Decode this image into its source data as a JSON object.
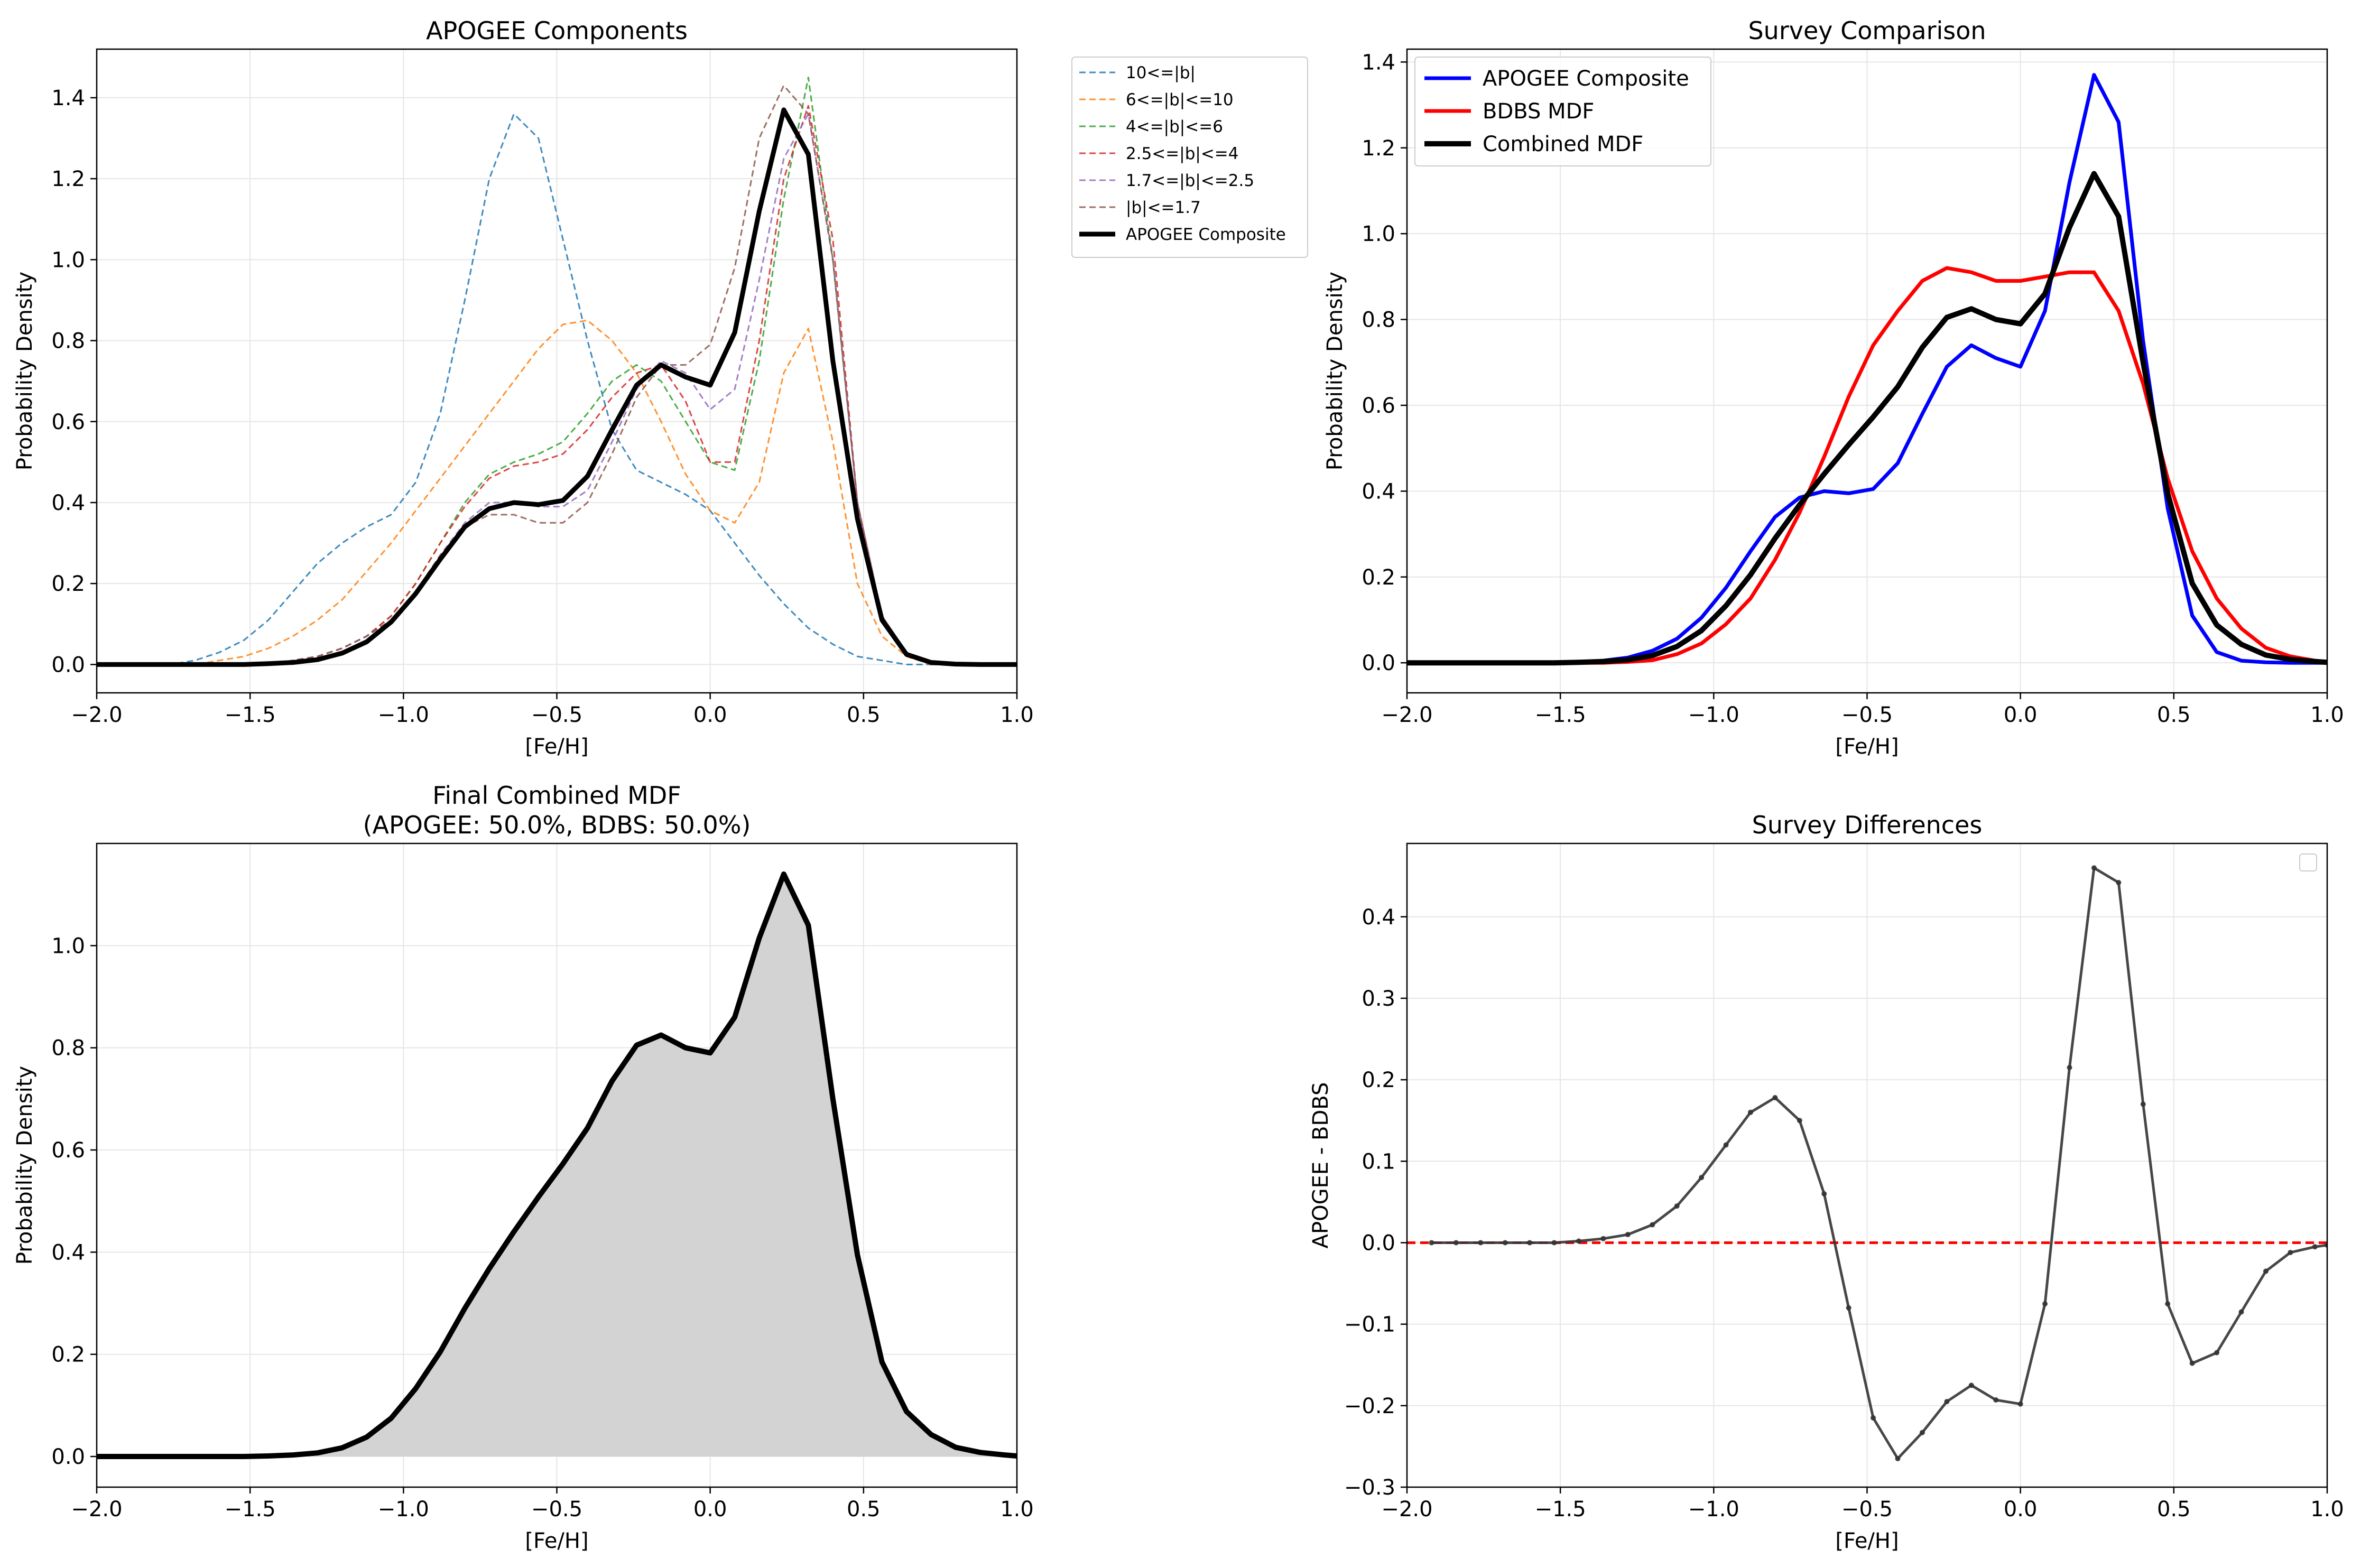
{
  "figure": {
    "background": "#ffffff"
  },
  "chart_data": [
    {
      "type": "line",
      "title": "APOGEE Components",
      "xlabel": "[Fe/H]",
      "ylabel": "Probability Density",
      "xlim": [
        -2.0,
        1.0
      ],
      "ylim": [
        -0.07,
        1.52
      ],
      "xticks": [
        -2.0,
        -1.5,
        -1.0,
        -0.5,
        0.0,
        0.5,
        1.0
      ],
      "xtick_labels": [
        "−2.0",
        "−1.5",
        "−1.0",
        "−0.5",
        "0.0",
        "0.5",
        "1.0"
      ],
      "yticks": [
        0.0,
        0.2,
        0.4,
        0.6,
        0.8,
        1.0,
        1.2,
        1.4
      ],
      "ytick_labels": [
        "0.0",
        "0.2",
        "0.4",
        "0.6",
        "0.8",
        "1.0",
        "1.2",
        "1.4"
      ],
      "grid": true,
      "legend": "outside-right",
      "x": [
        -2.0,
        -1.92,
        -1.84,
        -1.76,
        -1.68,
        -1.6,
        -1.52,
        -1.44,
        -1.36,
        -1.28,
        -1.2,
        -1.12,
        -1.04,
        -0.96,
        -0.88,
        -0.8,
        -0.72,
        -0.64,
        -0.56,
        -0.48,
        -0.4,
        -0.32,
        -0.24,
        -0.16,
        -0.08,
        0.0,
        0.08,
        0.16,
        0.24,
        0.32,
        0.4,
        0.48,
        0.56,
        0.64,
        0.72,
        0.8,
        0.88,
        0.96,
        1.0
      ],
      "series": [
        {
          "name": "10<=|b|",
          "color": "#1f77b4",
          "style": "dashed",
          "width": 3,
          "opacity": 0.85,
          "values": [
            0,
            0,
            0,
            0,
            0.01,
            0.03,
            0.06,
            0.11,
            0.18,
            0.25,
            0.3,
            0.34,
            0.37,
            0.45,
            0.62,
            0.9,
            1.2,
            1.36,
            1.3,
            1.05,
            0.8,
            0.58,
            0.48,
            0.45,
            0.42,
            0.38,
            0.3,
            0.22,
            0.15,
            0.09,
            0.05,
            0.02,
            0.01,
            0,
            0,
            0,
            0,
            0,
            0
          ]
        },
        {
          "name": "6<=|b|<=10",
          "color": "#ff7f0e",
          "style": "dashed",
          "width": 3,
          "opacity": 0.85,
          "values": [
            0,
            0,
            0,
            0,
            0,
            0.01,
            0.02,
            0.04,
            0.07,
            0.11,
            0.16,
            0.23,
            0.3,
            0.38,
            0.46,
            0.54,
            0.62,
            0.7,
            0.78,
            0.84,
            0.85,
            0.8,
            0.72,
            0.6,
            0.47,
            0.38,
            0.35,
            0.45,
            0.72,
            0.83,
            0.55,
            0.2,
            0.07,
            0.02,
            0,
            0,
            0,
            0,
            0
          ]
        },
        {
          "name": "4<=|b|<=6",
          "color": "#2ca02c",
          "style": "dashed",
          "width": 3,
          "opacity": 0.85,
          "values": [
            0,
            0,
            0,
            0,
            0,
            0,
            0,
            0,
            0.01,
            0.02,
            0.04,
            0.07,
            0.12,
            0.2,
            0.3,
            0.4,
            0.47,
            0.5,
            0.52,
            0.55,
            0.62,
            0.7,
            0.74,
            0.7,
            0.6,
            0.5,
            0.48,
            0.75,
            1.15,
            1.45,
            1.0,
            0.4,
            0.12,
            0.03,
            0,
            0,
            0,
            0,
            0
          ]
        },
        {
          "name": "2.5<=|b|<=4",
          "color": "#d62728",
          "style": "dashed",
          "width": 3,
          "opacity": 0.85,
          "values": [
            0,
            0,
            0,
            0,
            0,
            0,
            0,
            0,
            0.01,
            0.02,
            0.04,
            0.07,
            0.12,
            0.2,
            0.3,
            0.39,
            0.46,
            0.49,
            0.5,
            0.52,
            0.58,
            0.66,
            0.72,
            0.74,
            0.65,
            0.5,
            0.5,
            0.8,
            1.2,
            1.38,
            1.05,
            0.4,
            0.12,
            0.03,
            0,
            0,
            0,
            0,
            0
          ]
        },
        {
          "name": "1.7<=|b|<=2.5",
          "color": "#9467bd",
          "style": "dashed",
          "width": 3,
          "opacity": 0.85,
          "values": [
            0,
            0,
            0,
            0,
            0,
            0,
            0,
            0,
            0.01,
            0.02,
            0.04,
            0.07,
            0.11,
            0.18,
            0.27,
            0.35,
            0.4,
            0.4,
            0.39,
            0.39,
            0.43,
            0.55,
            0.68,
            0.75,
            0.72,
            0.63,
            0.68,
            0.95,
            1.25,
            1.36,
            1.0,
            0.4,
            0.12,
            0.03,
            0,
            0,
            0,
            0,
            0
          ]
        },
        {
          "name": "|b|<=1.7",
          "color": "#8c564b",
          "style": "dashed",
          "width": 3,
          "opacity": 0.85,
          "values": [
            0,
            0,
            0,
            0,
            0,
            0,
            0,
            0,
            0.01,
            0.02,
            0.04,
            0.07,
            0.11,
            0.18,
            0.27,
            0.34,
            0.37,
            0.37,
            0.35,
            0.35,
            0.4,
            0.52,
            0.66,
            0.74,
            0.74,
            0.79,
            0.98,
            1.3,
            1.43,
            1.36,
            1.0,
            0.4,
            0.12,
            0.03,
            0,
            0,
            0,
            0,
            0
          ]
        },
        {
          "name": "APOGEE Composite",
          "color": "#000000",
          "style": "solid",
          "width": 9,
          "opacity": 1,
          "values": [
            0,
            0,
            0,
            0,
            0,
            0,
            0,
            0.002,
            0.005,
            0.012,
            0.028,
            0.056,
            0.105,
            0.175,
            0.26,
            0.34,
            0.385,
            0.4,
            0.395,
            0.405,
            0.465,
            0.58,
            0.69,
            0.74,
            0.71,
            0.69,
            0.82,
            1.12,
            1.37,
            1.26,
            0.75,
            0.36,
            0.11,
            0.025,
            0.005,
            0.001,
            0,
            0,
            0
          ]
        }
      ]
    },
    {
      "type": "line",
      "title": "Survey Comparison",
      "xlabel": "[Fe/H]",
      "ylabel": "Probability Density",
      "xlim": [
        -2.0,
        1.0
      ],
      "ylim": [
        -0.07,
        1.43
      ],
      "xticks": [
        -2.0,
        -1.5,
        -1.0,
        -0.5,
        0.0,
        0.5,
        1.0
      ],
      "xtick_labels": [
        "−2.0",
        "−1.5",
        "−1.0",
        "−0.5",
        "0.0",
        "0.5",
        "1.0"
      ],
      "yticks": [
        0.0,
        0.2,
        0.4,
        0.6,
        0.8,
        1.0,
        1.2,
        1.4
      ],
      "ytick_labels": [
        "0.0",
        "0.2",
        "0.4",
        "0.6",
        "0.8",
        "1.0",
        "1.2",
        "1.4"
      ],
      "grid": true,
      "legend": "top-left",
      "x": [
        -2.0,
        -1.92,
        -1.84,
        -1.76,
        -1.68,
        -1.6,
        -1.52,
        -1.44,
        -1.36,
        -1.28,
        -1.2,
        -1.12,
        -1.04,
        -0.96,
        -0.88,
        -0.8,
        -0.72,
        -0.64,
        -0.56,
        -0.48,
        -0.4,
        -0.32,
        -0.24,
        -0.16,
        -0.08,
        0.0,
        0.08,
        0.16,
        0.24,
        0.32,
        0.4,
        0.48,
        0.56,
        0.64,
        0.72,
        0.8,
        0.88,
        0.96,
        1.0
      ],
      "series": [
        {
          "name": "APOGEE Composite",
          "color": "#0000ff",
          "style": "solid",
          "width": 7,
          "opacity": 1,
          "values": [
            0,
            0,
            0,
            0,
            0,
            0,
            0,
            0.002,
            0.005,
            0.012,
            0.028,
            0.056,
            0.105,
            0.175,
            0.26,
            0.34,
            0.385,
            0.4,
            0.395,
            0.405,
            0.465,
            0.58,
            0.69,
            0.74,
            0.71,
            0.69,
            0.82,
            1.12,
            1.37,
            1.26,
            0.75,
            0.36,
            0.11,
            0.025,
            0.005,
            0.001,
            0,
            0,
            0
          ]
        },
        {
          "name": "BDBS MDF",
          "color": "#ff0000",
          "style": "solid",
          "width": 7,
          "opacity": 1,
          "values": [
            0,
            0,
            0,
            0,
            0,
            0,
            0,
            0,
            0,
            0.002,
            0.006,
            0.02,
            0.045,
            0.09,
            0.15,
            0.24,
            0.35,
            0.48,
            0.62,
            0.74,
            0.82,
            0.89,
            0.92,
            0.91,
            0.89,
            0.89,
            0.9,
            0.91,
            0.91,
            0.82,
            0.65,
            0.43,
            0.26,
            0.15,
            0.08,
            0.035,
            0.015,
            0.005,
            0.002
          ]
        },
        {
          "name": "Combined MDF",
          "color": "#000000",
          "style": "solid",
          "width": 10,
          "opacity": 1,
          "values": [
            0,
            0,
            0,
            0,
            0,
            0,
            0,
            0.001,
            0.003,
            0.007,
            0.017,
            0.038,
            0.075,
            0.133,
            0.205,
            0.29,
            0.368,
            0.44,
            0.508,
            0.573,
            0.643,
            0.735,
            0.805,
            0.825,
            0.8,
            0.79,
            0.86,
            1.015,
            1.14,
            1.04,
            0.7,
            0.395,
            0.185,
            0.088,
            0.043,
            0.018,
            0.008,
            0.003,
            0.001
          ]
        }
      ]
    },
    {
      "type": "area",
      "title": "Final Combined MDF",
      "subtitle": "(APOGEE: 50.0%, BDBS: 50.0%)",
      "xlabel": "[Fe/H]",
      "ylabel": "Probability Density",
      "xlim": [
        -2.0,
        1.0
      ],
      "ylim": [
        -0.06,
        1.2
      ],
      "xticks": [
        -2.0,
        -1.5,
        -1.0,
        -0.5,
        0.0,
        0.5,
        1.0
      ],
      "xtick_labels": [
        "−2.0",
        "−1.5",
        "−1.0",
        "−0.5",
        "0.0",
        "0.5",
        "1.0"
      ],
      "yticks": [
        0.0,
        0.2,
        0.4,
        0.6,
        0.8,
        1.0
      ],
      "ytick_labels": [
        "0.0",
        "0.2",
        "0.4",
        "0.6",
        "0.8",
        "1.0"
      ],
      "grid": true,
      "fill_color": "#d3d3d3",
      "x": [
        -2.0,
        -1.92,
        -1.84,
        -1.76,
        -1.68,
        -1.6,
        -1.52,
        -1.44,
        -1.36,
        -1.28,
        -1.2,
        -1.12,
        -1.04,
        -0.96,
        -0.88,
        -0.8,
        -0.72,
        -0.64,
        -0.56,
        -0.48,
        -0.4,
        -0.32,
        -0.24,
        -0.16,
        -0.08,
        0.0,
        0.08,
        0.16,
        0.24,
        0.32,
        0.4,
        0.48,
        0.56,
        0.64,
        0.72,
        0.8,
        0.88,
        0.96,
        1.0
      ],
      "series": [
        {
          "color": "#000000",
          "style": "solid",
          "width": 10,
          "opacity": 1,
          "values": [
            0,
            0,
            0,
            0,
            0,
            0,
            0,
            0.001,
            0.003,
            0.007,
            0.017,
            0.038,
            0.075,
            0.133,
            0.205,
            0.29,
            0.368,
            0.44,
            0.508,
            0.573,
            0.643,
            0.735,
            0.805,
            0.825,
            0.8,
            0.79,
            0.86,
            1.015,
            1.14,
            1.04,
            0.7,
            0.395,
            0.185,
            0.088,
            0.043,
            0.018,
            0.008,
            0.003,
            0.001
          ]
        }
      ]
    },
    {
      "type": "line",
      "title": "Survey Differences",
      "xlabel": "[Fe/H]",
      "ylabel": "APOGEE - BDBS",
      "xlim": [
        -2.0,
        1.0
      ],
      "ylim": [
        -0.3,
        0.49
      ],
      "xticks": [
        -2.0,
        -1.5,
        -1.0,
        -0.5,
        0.0,
        0.5,
        1.0
      ],
      "xtick_labels": [
        "−2.0",
        "−1.5",
        "−1.0",
        "−0.5",
        "0.0",
        "0.5",
        "1.0"
      ],
      "yticks": [
        -0.3,
        -0.2,
        -0.1,
        0.0,
        0.1,
        0.2,
        0.3,
        0.4
      ],
      "ytick_labels": [
        "−0.3",
        "−0.2",
        "−0.1",
        "0.0",
        "0.1",
        "0.2",
        "0.3",
        "0.4"
      ],
      "grid": true,
      "legend": "top-right (empty)",
      "reference_line": {
        "y": 0.0,
        "color": "#ff0000",
        "style": "dashed"
      },
      "x": [
        -1.92,
        -1.84,
        -1.76,
        -1.68,
        -1.6,
        -1.52,
        -1.44,
        -1.36,
        -1.28,
        -1.2,
        -1.12,
        -1.04,
        -0.96,
        -0.88,
        -0.8,
        -0.72,
        -0.64,
        -0.56,
        -0.48,
        -0.4,
        -0.32,
        -0.24,
        -0.16,
        -0.08,
        0.0,
        0.08,
        0.16,
        0.24,
        0.32,
        0.4,
        0.48,
        0.56,
        0.64,
        0.72,
        0.8,
        0.88,
        0.96,
        1.0
      ],
      "series": [
        {
          "color": "#333333",
          "style": "solid",
          "width": 5,
          "opacity": 0.9,
          "markers": true,
          "values": [
            0,
            0,
            0,
            0,
            0,
            0,
            0.002,
            0.005,
            0.01,
            0.022,
            0.045,
            0.08,
            0.12,
            0.16,
            0.178,
            0.15,
            0.06,
            -0.08,
            -0.215,
            -0.265,
            -0.233,
            -0.195,
            -0.175,
            -0.193,
            -0.198,
            -0.075,
            0.215,
            0.46,
            0.442,
            0.17,
            -0.075,
            -0.148,
            -0.135,
            -0.085,
            -0.035,
            -0.012,
            -0.005,
            -0.003
          ]
        }
      ]
    }
  ]
}
